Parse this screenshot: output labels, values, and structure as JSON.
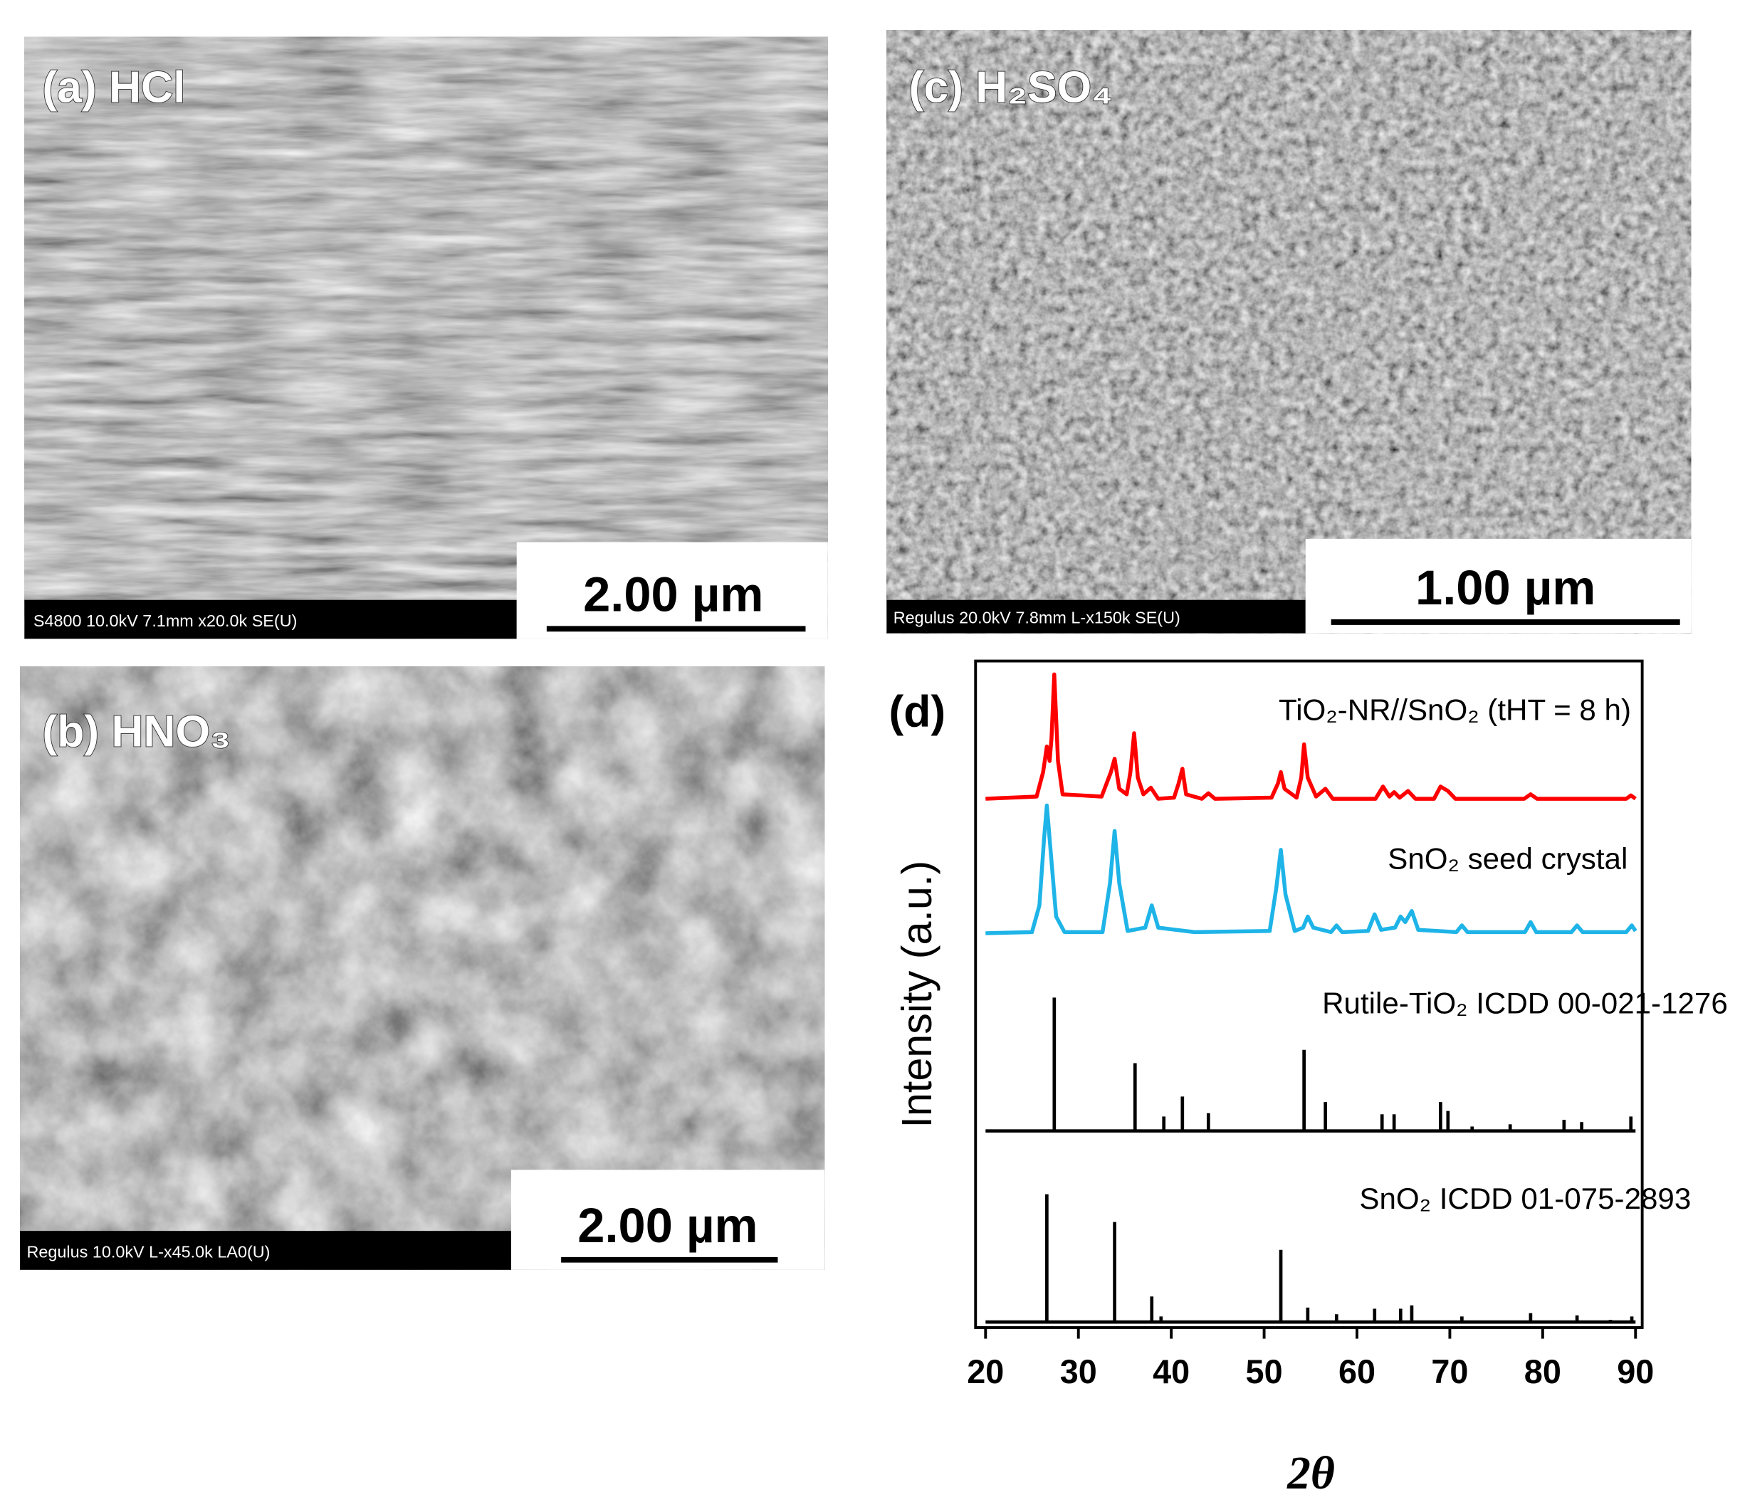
{
  "panels": [
    {
      "label": "(a) HCl",
      "scale_bar": "2.00 µm",
      "info": "S4800 10.0kV 7.1mm x20.0k SE(U)"
    },
    {
      "label": "(b) HNO₃",
      "scale_bar": "2.00 µm",
      "info": "Regulus 10.0kV L-x45.0k LA0(U)"
    },
    {
      "label": "(c) H₂SO₄",
      "scale_bar": "1.00 µm",
      "info": "Regulus 20.0kV 7.8mm L-x150k SE(U)"
    }
  ],
  "chart_data": {
    "type": "line",
    "label": "(d)",
    "xlabel": "2θ",
    "ylabel": "Intensity (a.u.)",
    "xlim": [
      20,
      90
    ],
    "xticks": [
      20,
      30,
      40,
      50,
      60,
      70,
      80,
      90
    ],
    "ylim": [
      0,
      6
    ],
    "series": [
      {
        "name": "TiO₂-NR//SnO₂ (tHT = 8 h)",
        "type": "line",
        "color": "#ff0000",
        "x": [
          20,
          25.5,
          26.2,
          26.6,
          26.9,
          27.1,
          27.4,
          27.8,
          28.3,
          32.5,
          33.5,
          33.9,
          34.4,
          35.2,
          35.6,
          36.0,
          36.4,
          37.0,
          37.8,
          38.6,
          40.3,
          40.8,
          41.2,
          41.6,
          43.3,
          44.0,
          44.7,
          50.8,
          51.5,
          51.8,
          52.2,
          53.5,
          54.0,
          54.3,
          54.7,
          55.6,
          56.6,
          57.4,
          62.0,
          62.8,
          63.5,
          64.0,
          64.6,
          65.5,
          66.3,
          68.3,
          69.0,
          69.8,
          70.6,
          78.0,
          78.7,
          79.4,
          89.0,
          89.5,
          90
        ],
        "values": [
          4.76,
          4.78,
          5.0,
          5.23,
          5.1,
          5.3,
          5.88,
          5.1,
          4.8,
          4.78,
          5.0,
          5.12,
          4.85,
          4.8,
          5.0,
          5.35,
          4.95,
          4.8,
          4.86,
          4.76,
          4.77,
          4.9,
          5.03,
          4.8,
          4.76,
          4.81,
          4.76,
          4.77,
          4.9,
          5.0,
          4.85,
          4.77,
          4.95,
          5.25,
          4.95,
          4.78,
          4.85,
          4.76,
          4.76,
          4.87,
          4.78,
          4.82,
          4.77,
          4.83,
          4.76,
          4.76,
          4.87,
          4.83,
          4.76,
          4.76,
          4.8,
          4.76,
          4.76,
          4.79,
          4.76
        ]
      },
      {
        "name": "SnO₂ seed crystal",
        "type": "line",
        "color": "#1eb4e8",
        "x": [
          20,
          25.0,
          25.8,
          26.3,
          26.6,
          27.0,
          27.6,
          28.5,
          32.6,
          33.4,
          33.9,
          34.4,
          35.3,
          37.2,
          37.9,
          38.6,
          42.5,
          50.6,
          51.3,
          51.8,
          52.3,
          53.3,
          54.2,
          54.7,
          55.3,
          57.2,
          57.8,
          58.4,
          61.2,
          61.9,
          62.6,
          64.1,
          64.7,
          65.2,
          65.9,
          66.6,
          70.7,
          71.3,
          71.9,
          78.1,
          78.7,
          79.3,
          83.1,
          83.7,
          84.3,
          89.0,
          89.6,
          90
        ],
        "values": [
          3.55,
          3.56,
          3.8,
          4.4,
          4.7,
          4.3,
          3.7,
          3.56,
          3.56,
          4.0,
          4.47,
          4.0,
          3.57,
          3.6,
          3.8,
          3.6,
          3.56,
          3.57,
          3.95,
          4.3,
          3.9,
          3.57,
          3.6,
          3.7,
          3.6,
          3.56,
          3.62,
          3.56,
          3.57,
          3.72,
          3.58,
          3.6,
          3.7,
          3.65,
          3.75,
          3.58,
          3.56,
          3.62,
          3.56,
          3.56,
          3.65,
          3.56,
          3.56,
          3.62,
          3.56,
          3.56,
          3.62,
          3.57
        ]
      },
      {
        "name": "Rutile-TiO₂ ICDD 00-021-1276",
        "type": "stick",
        "color": "#000000",
        "baseline": 1.77,
        "x": [
          27.4,
          36.1,
          39.2,
          41.2,
          44.0,
          54.3,
          56.6,
          62.7,
          64.0,
          69.0,
          69.8,
          72.4,
          76.5,
          82.3,
          84.2,
          89.5
        ],
        "values": [
          2.97,
          2.38,
          1.9,
          2.08,
          1.93,
          2.5,
          2.03,
          1.92,
          1.92,
          2.03,
          1.95,
          1.81,
          1.83,
          1.87,
          1.85,
          1.9
        ]
      },
      {
        "name": "SnO₂ ICDD 01-075-2893",
        "type": "stick",
        "color": "#000000",
        "baseline": 0.05,
        "x": [
          26.6,
          33.9,
          37.9,
          38.9,
          51.8,
          54.7,
          57.8,
          61.9,
          64.7,
          65.9,
          71.3,
          78.7,
          83.7,
          87.3,
          89.6
        ],
        "values": [
          1.2,
          0.95,
          0.28,
          0.1,
          0.7,
          0.18,
          0.12,
          0.17,
          0.17,
          0.2,
          0.1,
          0.13,
          0.11,
          0.07,
          0.1
        ]
      }
    ]
  }
}
